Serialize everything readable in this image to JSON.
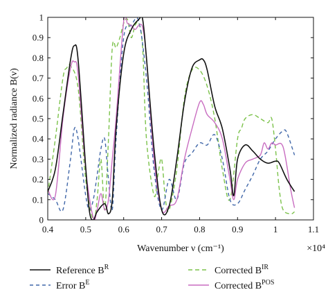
{
  "chart_data": {
    "type": "line",
    "title": "",
    "xlabel": "Wavenumber ν (cm⁻¹)",
    "ylabel": "Normalized radiance B(ν)",
    "x_multiplier": "×10⁴",
    "xlim": [
      0.4,
      1.1
    ],
    "ylim": [
      0,
      1
    ],
    "xticks": [
      "0.4",
      "0.5",
      "0.6",
      "0.7",
      "0.8",
      "0.9",
      "1",
      "1.1"
    ],
    "yticks": [
      "0",
      "0.1",
      "0.2",
      "0.3",
      "0.4",
      "0.5",
      "0.6",
      "0.7",
      "0.8",
      "0.9",
      "1"
    ],
    "grid": false,
    "legend_position": "bottom",
    "series": [
      {
        "name": "Reference B^R",
        "label_main": "Reference B",
        "label_sup": "R",
        "color": "#111111",
        "dash": "solid",
        "x": [
          0.4,
          0.42,
          0.44,
          0.46,
          0.47,
          0.48,
          0.5,
          0.51,
          0.52,
          0.53,
          0.55,
          0.56,
          0.57,
          0.58,
          0.6,
          0.62,
          0.64,
          0.65,
          0.66,
          0.68,
          0.7,
          0.72,
          0.74,
          0.76,
          0.78,
          0.8,
          0.81,
          0.82,
          0.84,
          0.86,
          0.88,
          0.89,
          0.9,
          0.92,
          0.94,
          0.96,
          0.98,
          1.0,
          1.01,
          1.03,
          1.05
        ],
        "y": [
          0.14,
          0.25,
          0.52,
          0.79,
          0.86,
          0.79,
          0.26,
          0.04,
          0.0,
          0.04,
          0.08,
          0.03,
          0.1,
          0.45,
          0.82,
          0.94,
          0.99,
          0.99,
          0.8,
          0.35,
          0.05,
          0.07,
          0.3,
          0.58,
          0.75,
          0.79,
          0.79,
          0.74,
          0.56,
          0.45,
          0.25,
          0.12,
          0.3,
          0.37,
          0.34,
          0.3,
          0.28,
          0.29,
          0.28,
          0.2,
          0.14
        ]
      },
      {
        "name": "Error B^E",
        "label_main": "Error B",
        "label_sup": "E",
        "color": "#3f66a8",
        "dash": "5,4",
        "x": [
          0.4,
          0.42,
          0.44,
          0.46,
          0.47,
          0.48,
          0.5,
          0.51,
          0.52,
          0.53,
          0.54,
          0.55,
          0.56,
          0.57,
          0.58,
          0.6,
          0.62,
          0.64,
          0.66,
          0.68,
          0.7,
          0.72,
          0.74,
          0.76,
          0.78,
          0.8,
          0.82,
          0.84,
          0.86,
          0.88,
          0.9,
          0.92,
          0.94,
          0.96,
          0.98,
          1.0,
          1.02,
          1.03,
          1.05
        ],
        "y": [
          0.13,
          0.1,
          0.05,
          0.3,
          0.45,
          0.4,
          0.12,
          0.05,
          0.1,
          0.22,
          0.35,
          0.4,
          0.2,
          0.05,
          0.4,
          0.9,
          0.96,
          0.98,
          0.7,
          0.25,
          0.05,
          0.2,
          0.1,
          0.28,
          0.33,
          0.38,
          0.37,
          0.42,
          0.3,
          0.1,
          0.08,
          0.15,
          0.22,
          0.3,
          0.34,
          0.4,
          0.44,
          0.43,
          0.32
        ]
      },
      {
        "name": "Corrected B^IR",
        "label_main": "Corrected B",
        "label_sup": "IR",
        "color": "#7bc24a",
        "dash": "6,4",
        "x": [
          0.4,
          0.42,
          0.44,
          0.45,
          0.46,
          0.48,
          0.5,
          0.52,
          0.53,
          0.54,
          0.55,
          0.56,
          0.57,
          0.58,
          0.59,
          0.6,
          0.61,
          0.62,
          0.63,
          0.64,
          0.65,
          0.66,
          0.68,
          0.69,
          0.7,
          0.71,
          0.72,
          0.74,
          0.76,
          0.78,
          0.8,
          0.82,
          0.84,
          0.86,
          0.88,
          0.9,
          0.91,
          0.92,
          0.94,
          0.96,
          0.98,
          0.99,
          1.0,
          1.01,
          1.02,
          1.04,
          1.05
        ],
        "y": [
          0.13,
          0.4,
          0.7,
          0.75,
          0.76,
          0.65,
          0.2,
          0.0,
          0.1,
          0.3,
          0.05,
          0.4,
          0.85,
          0.85,
          0.9,
          0.97,
          0.99,
          0.9,
          0.96,
          0.97,
          0.85,
          0.4,
          0.12,
          0.22,
          0.3,
          0.1,
          0.05,
          0.25,
          0.6,
          0.74,
          0.74,
          0.66,
          0.5,
          0.25,
          0.1,
          0.4,
          0.45,
          0.5,
          0.52,
          0.5,
          0.48,
          0.5,
          0.35,
          0.15,
          0.05,
          0.03,
          0.04
        ]
      },
      {
        "name": "Corrected B^POS",
        "label_main": "Corrected B",
        "label_sup": "POS",
        "color": "#c86cc0",
        "dash": "solid",
        "x": [
          0.4,
          0.42,
          0.44,
          0.46,
          0.47,
          0.48,
          0.5,
          0.52,
          0.53,
          0.54,
          0.55,
          0.56,
          0.57,
          0.58,
          0.6,
          0.61,
          0.62,
          0.63,
          0.64,
          0.65,
          0.66,
          0.68,
          0.7,
          0.72,
          0.74,
          0.76,
          0.78,
          0.8,
          0.81,
          0.82,
          0.84,
          0.86,
          0.88,
          0.89,
          0.9,
          0.92,
          0.94,
          0.96,
          0.97,
          0.98,
          0.99,
          1.0,
          1.02,
          1.04,
          1.05
        ],
        "y": [
          0.15,
          0.12,
          0.5,
          0.75,
          0.78,
          0.72,
          0.25,
          0.01,
          0.05,
          0.13,
          0.05,
          0.1,
          0.3,
          0.5,
          0.98,
          0.97,
          0.96,
          0.94,
          0.96,
          0.95,
          0.8,
          0.3,
          0.05,
          0.07,
          0.1,
          0.3,
          0.45,
          0.58,
          0.57,
          0.52,
          0.48,
          0.4,
          0.2,
          0.1,
          0.2,
          0.28,
          0.3,
          0.32,
          0.38,
          0.35,
          0.38,
          0.37,
          0.36,
          0.15,
          0.06
        ]
      }
    ]
  }
}
